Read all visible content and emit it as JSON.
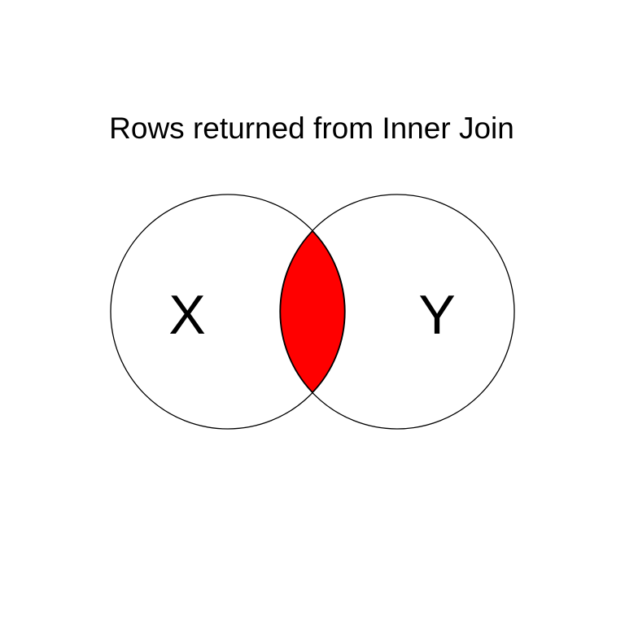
{
  "diagram": {
    "title": "Rows returned from Inner Join",
    "left_set_label": "X",
    "right_set_label": "Y",
    "highlighted_region": "intersection",
    "colors": {
      "highlight": "#ff0000",
      "outline": "#000000",
      "background": "#ffffff"
    }
  }
}
